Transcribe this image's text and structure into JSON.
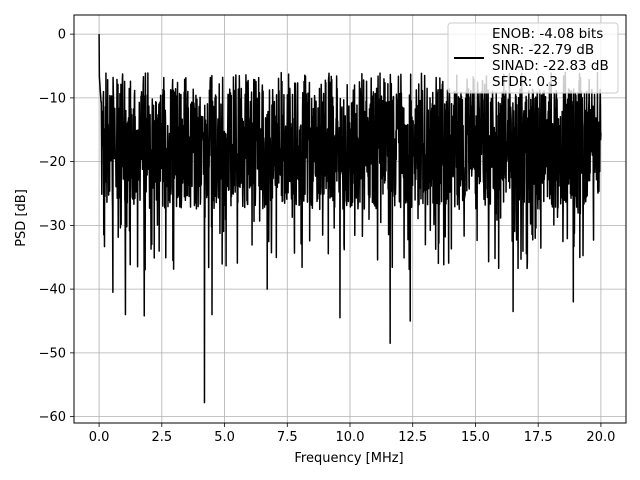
{
  "chart_data": {
    "type": "line",
    "title": "",
    "xlabel": "Frequency [MHz]",
    "ylabel": "PSD [dB]",
    "xlim": [
      -1.0,
      21.0
    ],
    "ylim": [
      -61.0,
      3.0
    ],
    "xticks": [
      0.0,
      2.5,
      5.0,
      7.5,
      10.0,
      12.5,
      15.0,
      17.5,
      20.0
    ],
    "xtick_labels": [
      "0.0",
      "2.5",
      "5.0",
      "7.5",
      "10.0",
      "12.5",
      "15.0",
      "17.5",
      "20.0"
    ],
    "yticks": [
      0,
      -10,
      -20,
      -30,
      -40,
      -50,
      -60
    ],
    "ytick_labels": [
      "0",
      "−10",
      "−20",
      "−30",
      "−40",
      "−50",
      "−60"
    ],
    "grid": true,
    "legend_placement": "upper-right",
    "series": [
      {
        "name": "ENOB: -4.08 bits",
        "legend_lines": [
          "ENOB: -4.08 bits",
          "SNR: -22.79 dB",
          "SINAD: -22.83 dB",
          "SFDR: 0.3"
        ],
        "color": "#000000",
        "x_range": [
          0.0,
          20.0
        ],
        "points": 2048,
        "peak": {
          "x": 0.0,
          "y": 0.0
        },
        "band_top_approx": -8.0,
        "band_bottom_approx": -28.0,
        "notable_dips": [
          {
            "x": 0.55,
            "y": -40.5
          },
          {
            "x": 1.05,
            "y": -44.0
          },
          {
            "x": 1.8,
            "y": -44.2
          },
          {
            "x": 4.2,
            "y": -57.8
          },
          {
            "x": 4.5,
            "y": -44.0
          },
          {
            "x": 6.7,
            "y": -40.0
          },
          {
            "x": 9.6,
            "y": -44.5
          },
          {
            "x": 11.6,
            "y": -48.5
          },
          {
            "x": 12.4,
            "y": -45.0
          },
          {
            "x": 16.5,
            "y": -43.5
          },
          {
            "x": 18.9,
            "y": -42.0
          }
        ]
      }
    ]
  }
}
